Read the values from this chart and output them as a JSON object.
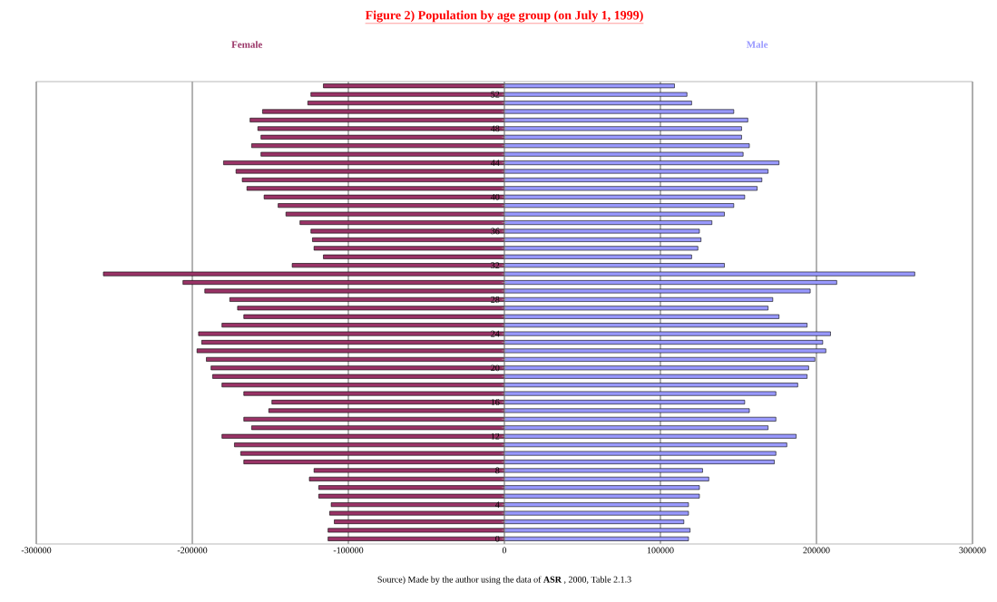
{
  "chart_data": {
    "type": "bar",
    "orientation": "horizontal",
    "stacked": true,
    "title": "Figure 2) Population by age group (on July 1, 1999)",
    "annotations": [
      "Source) Made by the author using the data of **ASR** , 2000, Table 2.1.3"
    ],
    "categories": [
      null,
      "52",
      null,
      null,
      null,
      "48",
      null,
      null,
      null,
      "44",
      null,
      null,
      null,
      "40",
      null,
      null,
      null,
      "36",
      null,
      null,
      null,
      "32",
      null,
      null,
      null,
      "28",
      null,
      null,
      null,
      "24",
      null,
      null,
      null,
      "20",
      null,
      null,
      null,
      "16",
      null,
      null,
      null,
      "12",
      null,
      null,
      null,
      "8",
      null,
      null,
      null,
      "4",
      null,
      null,
      null,
      "0"
    ],
    "series": [
      {
        "name": "Female",
        "color": "#993366",
        "values": [
          -116000,
          -124000,
          -126000,
          -155000,
          -163000,
          -158000,
          -156000,
          -162000,
          -156000,
          -180000,
          -172000,
          -168000,
          -165000,
          -154000,
          -145000,
          -140000,
          -131000,
          -124000,
          -123000,
          -122000,
          -116000,
          -136000,
          -257000,
          -206000,
          -192000,
          -176000,
          -171000,
          -167000,
          -181000,
          -196000,
          -194000,
          -197000,
          -191000,
          -188000,
          -187000,
          -181000,
          -167000,
          -149000,
          -151000,
          -167000,
          -162000,
          -181000,
          -173000,
          -169000,
          -167000,
          -122000,
          -125000,
          -119000,
          -119000,
          -111000,
          -112000,
          -109000,
          -113000,
          -113000
        ]
      },
      {
        "name": "Male",
        "color": "#9999ff",
        "values": [
          109000,
          117000,
          120000,
          147000,
          156000,
          152000,
          152000,
          157000,
          153000,
          176000,
          169000,
          165000,
          162000,
          154000,
          147000,
          141000,
          133000,
          125000,
          126000,
          124000,
          120000,
          141000,
          263000,
          213000,
          196000,
          172000,
          169000,
          176000,
          194000,
          209000,
          204000,
          206000,
          199000,
          195000,
          194000,
          188000,
          174000,
          154000,
          157000,
          174000,
          169000,
          187000,
          181000,
          174000,
          173000,
          127000,
          131000,
          125000,
          125000,
          118000,
          118000,
          115000,
          119000,
          118000
        ]
      }
    ],
    "xlim": [
      -300000,
      300000
    ],
    "xticks": [
      -300000,
      -200000,
      -100000,
      0,
      100000,
      200000,
      300000
    ],
    "grid": "x"
  }
}
